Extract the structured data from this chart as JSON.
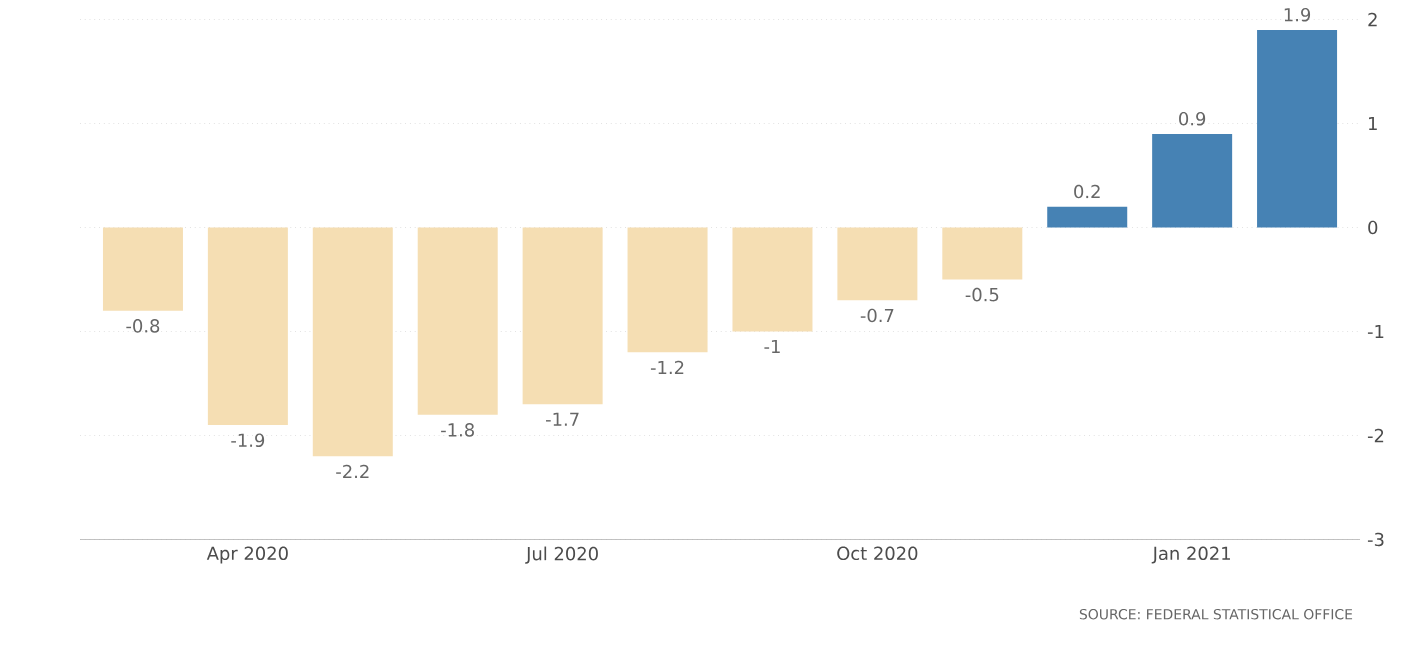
{
  "chart_data": {
    "type": "bar",
    "categories": [
      null,
      "Apr 2020",
      null,
      null,
      "Jul 2020",
      null,
      null,
      "Oct 2020",
      null,
      null,
      "Jan 2021",
      null
    ],
    "values": [
      -0.8,
      -1.9,
      -2.2,
      -1.8,
      -1.7,
      -1.2,
      -1,
      -0.7,
      -0.5,
      0.2,
      0.9,
      1.9
    ],
    "colors": [
      "#f5deb3",
      "#f5deb3",
      "#f5deb3",
      "#f5deb3",
      "#f5deb3",
      "#f5deb3",
      "#f5deb3",
      "#f5deb3",
      "#f5deb3",
      "#4682b4",
      "#4682b4",
      "#4682b4"
    ],
    "ylim": [
      -3,
      2
    ],
    "yticks": [
      -3,
      -2,
      -1,
      0,
      1,
      2
    ],
    "grid": "y",
    "data_labels": true,
    "annotations": [
      "SOURCE: FEDERAL STATISTICAL OFFICE"
    ]
  }
}
